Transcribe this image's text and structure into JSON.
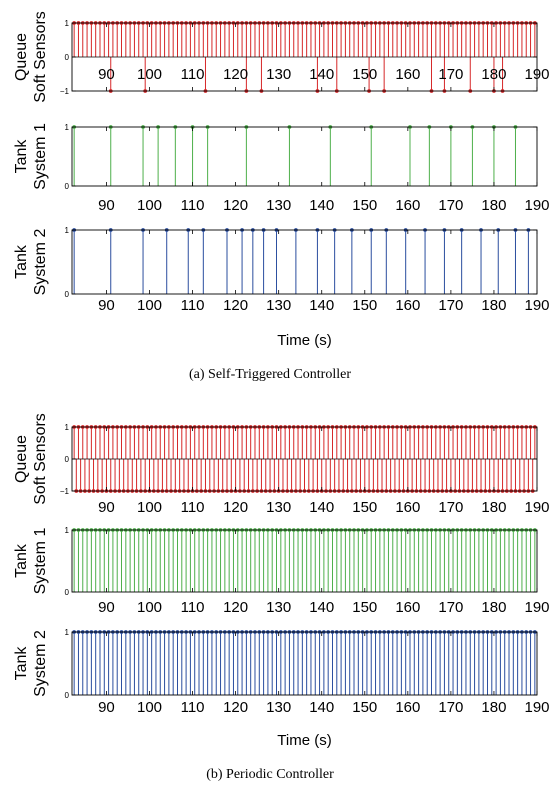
{
  "chart_data": [
    {
      "type": "stem",
      "subfigure": "a",
      "caption": "(a)  Self-Triggered Controller",
      "xlabel": "Time (s)",
      "xlim": [
        82,
        190
      ],
      "xticks": [
        90,
        100,
        110,
        120,
        130,
        140,
        150,
        160,
        170,
        180,
        190
      ],
      "panels": [
        {
          "ylabel": [
            "Queue",
            "Soft Sensors"
          ],
          "ylim": [
            -1,
            1
          ],
          "yticks": [
            -1,
            0,
            1
          ],
          "color": "#d62728",
          "periodic_positive": {
            "start": 82.5,
            "step": 1,
            "end": 189.5
          },
          "negative_events": [
            91,
            99,
            113,
            122.5,
            126,
            139,
            143.5,
            151,
            154.5,
            165.5,
            168.5,
            174.5,
            180,
            182
          ]
        },
        {
          "ylabel": [
            "Tank",
            "System 1"
          ],
          "ylim": [
            0,
            1
          ],
          "yticks": [
            0,
            1
          ],
          "color": "#4daf4a",
          "events": [
            82.5,
            91,
            98.5,
            102,
            106,
            110,
            113.5,
            122.5,
            132.5,
            142,
            151.5,
            160.5,
            165,
            170,
            175,
            180,
            185
          ]
        },
        {
          "ylabel": [
            "Tank",
            "System 2"
          ],
          "ylim": [
            0,
            1
          ],
          "yticks": [
            0,
            1
          ],
          "color": "#2a4d9e",
          "events": [
            82.5,
            91,
            98.5,
            104,
            109,
            112.5,
            118,
            121.5,
            124,
            126.5,
            129.5,
            134,
            139,
            143,
            147,
            151.5,
            155,
            159.5,
            164,
            168.5,
            172.5,
            177,
            181,
            185,
            188
          ]
        }
      ]
    },
    {
      "type": "stem",
      "subfigure": "b",
      "caption": "(b)  Periodic Controller",
      "xlabel": "Time (s)",
      "xlim": [
        82,
        190
      ],
      "xticks": [
        90,
        100,
        110,
        120,
        130,
        140,
        150,
        160,
        170,
        180,
        190
      ],
      "panels": [
        {
          "ylabel": [
            "Queue",
            "Soft Sensors"
          ],
          "ylim": [
            -1,
            1
          ],
          "yticks": [
            -1,
            0,
            1
          ],
          "color": "#d62728",
          "periodic_positive": {
            "start": 82.5,
            "step": 1,
            "end": 189.5
          },
          "periodic_negative": {
            "start": 83,
            "step": 1,
            "end": 189
          }
        },
        {
          "ylabel": [
            "Tank",
            "System 1"
          ],
          "ylim": [
            0,
            1
          ],
          "yticks": [
            0,
            1
          ],
          "color": "#4daf4a",
          "periodic": {
            "start": 82.5,
            "step": 1,
            "end": 189.5
          }
        },
        {
          "ylabel": [
            "Tank",
            "System 2"
          ],
          "ylim": [
            0,
            1
          ],
          "yticks": [
            0,
            1
          ],
          "color": "#2a4d9e",
          "periodic": {
            "start": 82.5,
            "step": 1,
            "end": 189.5
          }
        }
      ]
    }
  ]
}
